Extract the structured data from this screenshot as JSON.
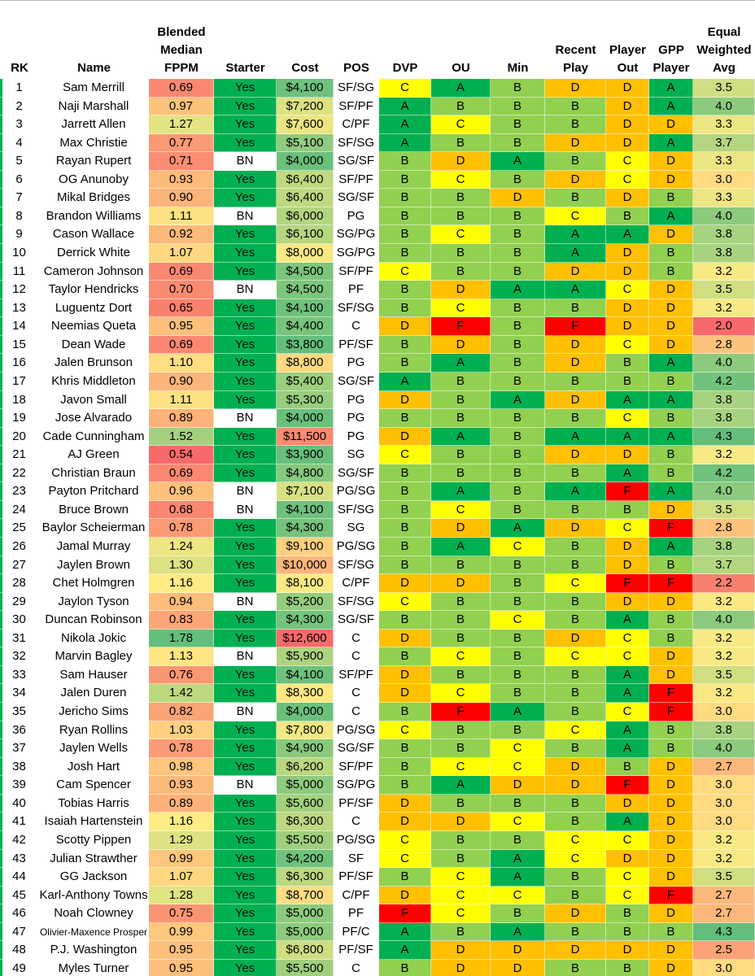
{
  "table": {
    "header": [
      [
        "RK"
      ],
      [
        "Name"
      ],
      [
        "Blended",
        "Median",
        "FPPM"
      ],
      [
        "Starter"
      ],
      [
        "Cost"
      ],
      [
        "POS"
      ],
      [
        "DVP"
      ],
      [
        "OU"
      ],
      [
        "Min"
      ],
      [
        "Recent",
        "Play"
      ],
      [
        "Player",
        "Out"
      ],
      [
        "GPP",
        "Player"
      ],
      [
        "Equal",
        "Weighted",
        "Avg"
      ]
    ],
    "rows": [
      [
        "1",
        "Sam Merrill",
        "0.69",
        "Yes",
        "$4,100",
        "SF/SG",
        "C",
        "A",
        "B",
        "D",
        "D",
        "A",
        "3.5"
      ],
      [
        "2",
        "Naji Marshall",
        "0.97",
        "Yes",
        "$7,200",
        "SF/PF",
        "A",
        "B",
        "B",
        "B",
        "D",
        "A",
        "4.0"
      ],
      [
        "3",
        "Jarrett Allen",
        "1.27",
        "Yes",
        "$7,600",
        "C/PF",
        "A",
        "C",
        "B",
        "B",
        "D",
        "D",
        "3.3"
      ],
      [
        "4",
        "Max Christie",
        "0.77",
        "Yes",
        "$5,100",
        "SF/SG",
        "A",
        "B",
        "B",
        "D",
        "D",
        "A",
        "3.7"
      ],
      [
        "5",
        "Rayan Rupert",
        "0.71",
        "BN",
        "$4,000",
        "SG/SF",
        "B",
        "D",
        "A",
        "B",
        "C",
        "D",
        "3.3"
      ],
      [
        "6",
        "OG Anunoby",
        "0.93",
        "Yes",
        "$6,400",
        "SF/PF",
        "B",
        "C",
        "B",
        "D",
        "C",
        "D",
        "3.0"
      ],
      [
        "7",
        "Mikal Bridges",
        "0.90",
        "Yes",
        "$6,400",
        "SG/SF",
        "B",
        "B",
        "D",
        "B",
        "D",
        "B",
        "3.3"
      ],
      [
        "8",
        "Brandon Williams",
        "1.11",
        "BN",
        "$6,000",
        "PG",
        "B",
        "B",
        "B",
        "C",
        "B",
        "A",
        "4.0"
      ],
      [
        "9",
        "Cason Wallace",
        "0.92",
        "Yes",
        "$6,100",
        "SG/PG",
        "B",
        "C",
        "B",
        "A",
        "A",
        "D",
        "3.8"
      ],
      [
        "10",
        "Derrick White",
        "1.07",
        "Yes",
        "$8,000",
        "SG/PG",
        "B",
        "B",
        "B",
        "A",
        "D",
        "B",
        "3.8"
      ],
      [
        "11",
        "Cameron Johnson",
        "0.69",
        "Yes",
        "$4,500",
        "SF/PF",
        "C",
        "B",
        "B",
        "D",
        "D",
        "B",
        "3.2"
      ],
      [
        "12",
        "Taylor Hendricks",
        "0.70",
        "BN",
        "$4,500",
        "PF",
        "B",
        "D",
        "A",
        "A",
        "C",
        "D",
        "3.5"
      ],
      [
        "13",
        "Luguentz Dort",
        "0.65",
        "Yes",
        "$4,100",
        "SF/SG",
        "B",
        "C",
        "B",
        "B",
        "D",
        "D",
        "3.2"
      ],
      [
        "14",
        "Neemias Queta",
        "0.95",
        "Yes",
        "$4,400",
        "C",
        "D",
        "F",
        "B",
        "F",
        "D",
        "D",
        "2.0"
      ],
      [
        "15",
        "Dean Wade",
        "0.69",
        "Yes",
        "$3,800",
        "PF/SF",
        "B",
        "D",
        "B",
        "D",
        "C",
        "D",
        "2.8"
      ],
      [
        "16",
        "Jalen Brunson",
        "1.10",
        "Yes",
        "$8,800",
        "PG",
        "B",
        "A",
        "B",
        "D",
        "B",
        "A",
        "4.0"
      ],
      [
        "17",
        "Khris Middleton",
        "0.90",
        "Yes",
        "$5,400",
        "SG/SF",
        "A",
        "B",
        "B",
        "B",
        "B",
        "B",
        "4.2"
      ],
      [
        "18",
        "Javon Small",
        "1.11",
        "Yes",
        "$5,300",
        "PG",
        "D",
        "B",
        "A",
        "D",
        "A",
        "A",
        "3.8"
      ],
      [
        "19",
        "Jose Alvarado",
        "0.89",
        "BN",
        "$4,000",
        "PG",
        "B",
        "B",
        "B",
        "B",
        "C",
        "B",
        "3.8"
      ],
      [
        "20",
        "Cade Cunningham",
        "1.52",
        "Yes",
        "$11,500",
        "PG",
        "D",
        "A",
        "B",
        "A",
        "A",
        "A",
        "4.3"
      ],
      [
        "21",
        "AJ Green",
        "0.54",
        "Yes",
        "$3,900",
        "SG",
        "C",
        "B",
        "B",
        "D",
        "D",
        "B",
        "3.2"
      ],
      [
        "22",
        "Christian Braun",
        "0.69",
        "Yes",
        "$4,800",
        "SG/SF",
        "B",
        "B",
        "B",
        "B",
        "A",
        "B",
        "4.2"
      ],
      [
        "23",
        "Payton Pritchard",
        "0.96",
        "BN",
        "$7,100",
        "PG/SG",
        "B",
        "A",
        "B",
        "A",
        "F",
        "A",
        "4.0"
      ],
      [
        "24",
        "Bruce Brown",
        "0.68",
        "BN",
        "$4,100",
        "SF/SG",
        "B",
        "C",
        "B",
        "B",
        "B",
        "D",
        "3.5"
      ],
      [
        "25",
        "Baylor Scheierman",
        "0.78",
        "Yes",
        "$4,300",
        "SG",
        "B",
        "D",
        "A",
        "D",
        "C",
        "F",
        "2.8"
      ],
      [
        "26",
        "Jamal Murray",
        "1.24",
        "Yes",
        "$9,100",
        "PG/SG",
        "B",
        "A",
        "C",
        "B",
        "D",
        "A",
        "3.8"
      ],
      [
        "27",
        "Jaylen Brown",
        "1.30",
        "Yes",
        "$10,000",
        "SF/SG",
        "B",
        "B",
        "B",
        "B",
        "D",
        "B",
        "3.7"
      ],
      [
        "28",
        "Chet Holmgren",
        "1.16",
        "Yes",
        "$8,100",
        "C/PF",
        "D",
        "D",
        "B",
        "C",
        "F",
        "F",
        "2.2"
      ],
      [
        "29",
        "Jaylon Tyson",
        "0.94",
        "BN",
        "$5,200",
        "SF/SG",
        "C",
        "B",
        "B",
        "B",
        "D",
        "D",
        "3.2"
      ],
      [
        "30",
        "Duncan Robinson",
        "0.83",
        "Yes",
        "$4,300",
        "SG/SF",
        "B",
        "B",
        "C",
        "B",
        "A",
        "B",
        "4.0"
      ],
      [
        "31",
        "Nikola Jokic",
        "1.78",
        "Yes",
        "$12,600",
        "C",
        "D",
        "B",
        "B",
        "D",
        "C",
        "B",
        "3.2"
      ],
      [
        "32",
        "Marvin Bagley",
        "1.13",
        "BN",
        "$5,900",
        "C",
        "B",
        "C",
        "B",
        "C",
        "C",
        "D",
        "3.2"
      ],
      [
        "33",
        "Sam Hauser",
        "0.76",
        "Yes",
        "$4,100",
        "SF/PF",
        "D",
        "B",
        "B",
        "B",
        "A",
        "D",
        "3.5"
      ],
      [
        "34",
        "Jalen Duren",
        "1.42",
        "Yes",
        "$8,300",
        "C",
        "D",
        "C",
        "B",
        "B",
        "A",
        "F",
        "3.2"
      ],
      [
        "35",
        "Jericho Sims",
        "0.82",
        "BN",
        "$4,000",
        "C",
        "B",
        "F",
        "A",
        "B",
        "C",
        "F",
        "3.0"
      ],
      [
        "36",
        "Ryan Rollins",
        "1.03",
        "Yes",
        "$7,800",
        "PG/SG",
        "C",
        "B",
        "B",
        "C",
        "A",
        "B",
        "3.8"
      ],
      [
        "37",
        "Jaylen Wells",
        "0.78",
        "Yes",
        "$4,900",
        "SG/SF",
        "B",
        "B",
        "C",
        "B",
        "A",
        "B",
        "4.0"
      ],
      [
        "38",
        "Josh Hart",
        "0.98",
        "Yes",
        "$6,200",
        "SF/PF",
        "B",
        "C",
        "C",
        "D",
        "B",
        "D",
        "2.7"
      ],
      [
        "39",
        "Cam Spencer",
        "0.93",
        "BN",
        "$5,000",
        "SG/PG",
        "B",
        "A",
        "D",
        "D",
        "F",
        "D",
        "3.0"
      ],
      [
        "40",
        "Tobias Harris",
        "0.89",
        "Yes",
        "$5,600",
        "PF/SF",
        "D",
        "B",
        "B",
        "B",
        "D",
        "D",
        "3.0"
      ],
      [
        "41",
        "Isaiah Hartenstein",
        "1.16",
        "Yes",
        "$6,300",
        "C",
        "D",
        "D",
        "C",
        "B",
        "A",
        "D",
        "3.0"
      ],
      [
        "42",
        "Scotty Pippen",
        "1.29",
        "Yes",
        "$5,500",
        "PG/SG",
        "C",
        "B",
        "B",
        "C",
        "C",
        "D",
        "3.2"
      ],
      [
        "43",
        "Julian Strawther",
        "0.99",
        "Yes",
        "$4,200",
        "SF",
        "C",
        "B",
        "A",
        "C",
        "D",
        "D",
        "3.2"
      ],
      [
        "44",
        "GG Jackson",
        "1.07",
        "Yes",
        "$6,300",
        "PF/SF",
        "B",
        "C",
        "A",
        "B",
        "C",
        "D",
        "3.5"
      ],
      [
        "45",
        "Karl-Anthony Towns",
        "1.28",
        "Yes",
        "$8,700",
        "C/PF",
        "D",
        "C",
        "C",
        "B",
        "C",
        "F",
        "2.7"
      ],
      [
        "46",
        "Noah Clowney",
        "0.75",
        "Yes",
        "$5,000",
        "PF",
        "F",
        "C",
        "B",
        "D",
        "B",
        "D",
        "2.7"
      ],
      [
        "47",
        "Olivier-Maxence Prosper",
        "0.99",
        "Yes",
        "$5,000",
        "PF/C",
        "A",
        "B",
        "A",
        "B",
        "B",
        "B",
        "4.3"
      ],
      [
        "48",
        "P.J. Washington",
        "0.95",
        "Yes",
        "$6,800",
        "PF/SF",
        "A",
        "D",
        "D",
        "D",
        "D",
        "D",
        "2.5"
      ],
      [
        "49",
        "Myles Turner",
        "0.95",
        "Yes",
        "$5,500",
        "C",
        "B",
        "D",
        "D",
        "B",
        "B",
        "D",
        "3.0"
      ]
    ]
  }
}
